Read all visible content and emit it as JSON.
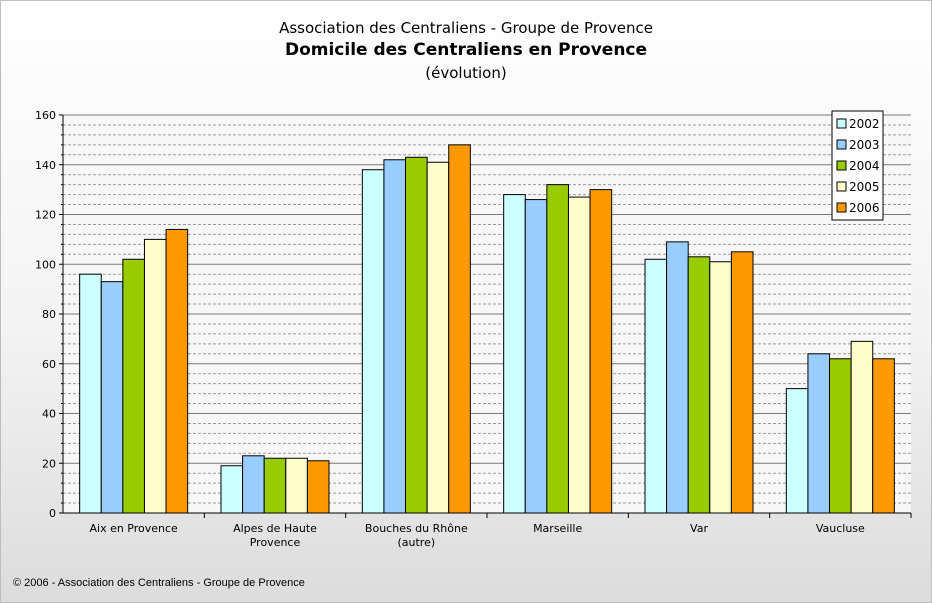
{
  "chart_data": {
    "type": "bar",
    "title_top": "Association des Centraliens - Groupe de Provence",
    "title": "Domicile des Centraliens en Provence",
    "subtitle": "(évolution)",
    "categories": [
      [
        "Aix en Provence"
      ],
      [
        "Alpes de Haute",
        "Provence"
      ],
      [
        "Bouches du Rhône",
        "(autre)"
      ],
      [
        "Marseille"
      ],
      [
        "Var"
      ],
      [
        "Vaucluse"
      ]
    ],
    "series": [
      {
        "name": "2002",
        "color": "#ccffff",
        "values": [
          96,
          19,
          138,
          128,
          102,
          50
        ]
      },
      {
        "name": "2003",
        "color": "#99ccff",
        "values": [
          93,
          23,
          142,
          126,
          109,
          64
        ]
      },
      {
        "name": "2004",
        "color": "#99cc00",
        "values": [
          102,
          22,
          143,
          132,
          103,
          62
        ]
      },
      {
        "name": "2005",
        "color": "#ffffcc",
        "values": [
          110,
          22,
          141,
          127,
          101,
          69
        ]
      },
      {
        "name": "2006",
        "color": "#ff9900",
        "values": [
          114,
          21,
          148,
          130,
          105,
          62
        ]
      }
    ],
    "ylim": [
      0,
      160
    ],
    "yticks": [
      0,
      20,
      40,
      60,
      80,
      100,
      120,
      140,
      160
    ],
    "grid": true,
    "legend_position": "top-right"
  },
  "footer": "© 2006 - Association des Centraliens - Groupe de Provence"
}
